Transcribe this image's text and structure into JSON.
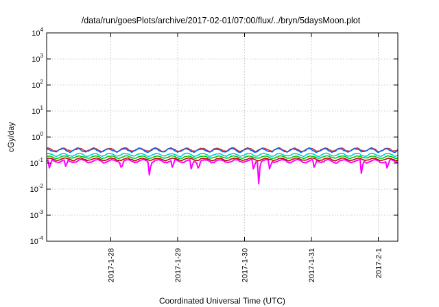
{
  "chart_data": {
    "type": "line",
    "title": "/data/run/goesPlots/archive/2017-02-01/07:00/flux/../bryn/5daysMoon.plot",
    "xlabel": "Coordinated Universal Time (UTC)",
    "ylabel": "cGy/day",
    "y_scale": "log",
    "ylim": [
      0.0001,
      10000
    ],
    "y_ticks": [
      {
        "value": 0.0001,
        "base": "10",
        "exp": "-4"
      },
      {
        "value": 0.001,
        "base": "10",
        "exp": "-3"
      },
      {
        "value": 0.01,
        "base": "10",
        "exp": "-2"
      },
      {
        "value": 0.1,
        "base": "10",
        "exp": "-1"
      },
      {
        "value": 1,
        "base": "10",
        "exp": "0"
      },
      {
        "value": 10,
        "base": "10",
        "exp": "1"
      },
      {
        "value": 100,
        "base": "10",
        "exp": "2"
      },
      {
        "value": 1000,
        "base": "10",
        "exp": "3"
      },
      {
        "value": 10000,
        "base": "10",
        "exp": "4"
      }
    ],
    "xlim": [
      "2017-01-27 01:00",
      "2017-02-01 07:00"
    ],
    "x_ticks": [
      {
        "value": "2017-01-28 00:00",
        "label": "2017-1-28"
      },
      {
        "value": "2017-01-29 00:00",
        "label": "2017-1-29"
      },
      {
        "value": "2017-01-30 00:00",
        "label": "2017-1-30"
      },
      {
        "value": "2017-01-31 00:00",
        "label": "2017-1-31"
      },
      {
        "value": "2017-02-01 00:00",
        "label": "2017-2-1"
      }
    ],
    "grid": true,
    "legend": "none",
    "series": [
      {
        "color": "#ff00ff",
        "level": 0.12,
        "noise": 0.13,
        "dips": [
          {
            "x": "2017-01-27 01:45",
            "y": 0.065
          },
          {
            "x": "2017-01-27 08:00",
            "y": 0.075
          },
          {
            "x": "2017-01-28 03:30",
            "y": 0.07
          },
          {
            "x": "2017-01-28 14:00",
            "y": 0.035
          },
          {
            "x": "2017-01-28 22:00",
            "y": 0.07
          },
          {
            "x": "2017-01-29 05:00",
            "y": 0.06
          },
          {
            "x": "2017-01-29 07:30",
            "y": 0.065
          },
          {
            "x": "2017-01-30 03:00",
            "y": 0.06
          },
          {
            "x": "2017-01-30 05:00",
            "y": 0.016
          },
          {
            "x": "2017-01-30 09:00",
            "y": 0.06
          },
          {
            "x": "2017-01-31 01:00",
            "y": 0.07
          },
          {
            "x": "2017-01-31 18:00",
            "y": 0.04
          },
          {
            "x": "2017-02-01 03:00",
            "y": 0.065
          }
        ]
      },
      {
        "color": "#c00000",
        "level": 0.14,
        "noise": 0.1,
        "dips": []
      },
      {
        "color": "#00c000",
        "level": 0.17,
        "noise": 0.1,
        "dips": []
      },
      {
        "color": "#00cccc",
        "level": 0.21,
        "noise": 0.12,
        "dips": []
      },
      {
        "color": "#d03030",
        "level": 0.33,
        "noise": 0.14,
        "dips": []
      },
      {
        "color": "#0060ff",
        "level": 0.31,
        "noise": 0.14,
        "dips": []
      }
    ]
  }
}
